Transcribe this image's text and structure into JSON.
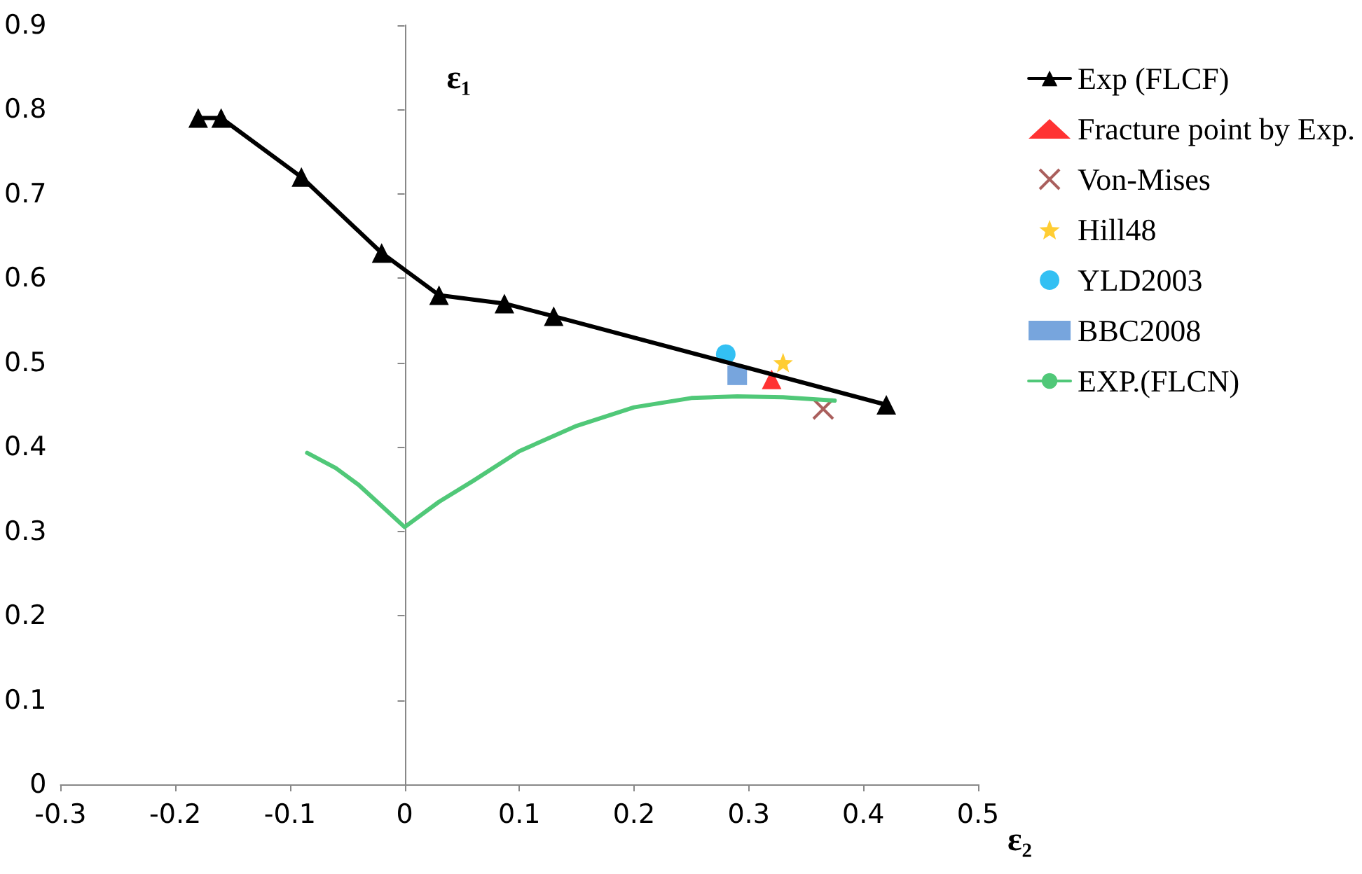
{
  "chart_data": {
    "type": "line",
    "xlabel": "ε₂",
    "ylabel": "ε₁",
    "xlim": [
      -0.3,
      0.5
    ],
    "xticks": [
      -0.3,
      -0.2,
      -0.1,
      0,
      0.1,
      0.2,
      0.3,
      0.4,
      0.5
    ],
    "ylim": [
      0,
      0.9
    ],
    "yticks": [
      0,
      0.1,
      0.2,
      0.3,
      0.4,
      0.5,
      0.6,
      0.7,
      0.8,
      0.9
    ],
    "legend": "right",
    "series": [
      {
        "name": "Exp (FLCF)",
        "color": "#000000",
        "marker": "triangle",
        "line_style": "solid",
        "x": [
          -0.18,
          -0.16,
          -0.09,
          -0.02,
          0.03,
          0.087,
          0.13,
          0.42
        ],
        "values": [
          0.79,
          0.79,
          0.72,
          0.63,
          0.58,
          0.57,
          0.555,
          0.45
        ]
      },
      {
        "name": "Fracture point by Exp.",
        "type": "scatter",
        "color": "#ff0000",
        "marker": "triangle",
        "x": [
          0.32
        ],
        "values": [
          0.48
        ]
      },
      {
        "name": "Von-Mises",
        "type": "scatter",
        "color": "#953735",
        "marker": "cross",
        "x": [
          0.365
        ],
        "values": [
          0.445
        ]
      },
      {
        "name": "Hill48",
        "type": "scatter",
        "color": "#ffc000",
        "marker": "star",
        "x": [
          0.33
        ],
        "values": [
          0.5
        ]
      },
      {
        "name": "YLD2003",
        "type": "scatter",
        "color": "#00b0f0",
        "marker": "circle",
        "x": [
          0.28
        ],
        "values": [
          0.51
        ]
      },
      {
        "name": "BBC2008",
        "type": "scatter",
        "color": "#558ed5",
        "marker": "square",
        "x": [
          0.29
        ],
        "values": [
          0.485
        ]
      },
      {
        "name": "EXP.(FLCN)",
        "color": "#50c878",
        "marker": "none",
        "line_style": "solid",
        "x": [
          -0.085,
          -0.06,
          -0.04,
          -0.02,
          0,
          0.03,
          0.06,
          0.1,
          0.15,
          0.2,
          0.25,
          0.29,
          0.33,
          0.375
        ],
        "values": [
          0.393,
          0.375,
          0.355,
          0.33,
          0.305,
          0.335,
          0.36,
          0.395,
          0.425,
          0.447,
          0.458,
          0.46,
          0.459,
          0.455
        ]
      }
    ]
  }
}
